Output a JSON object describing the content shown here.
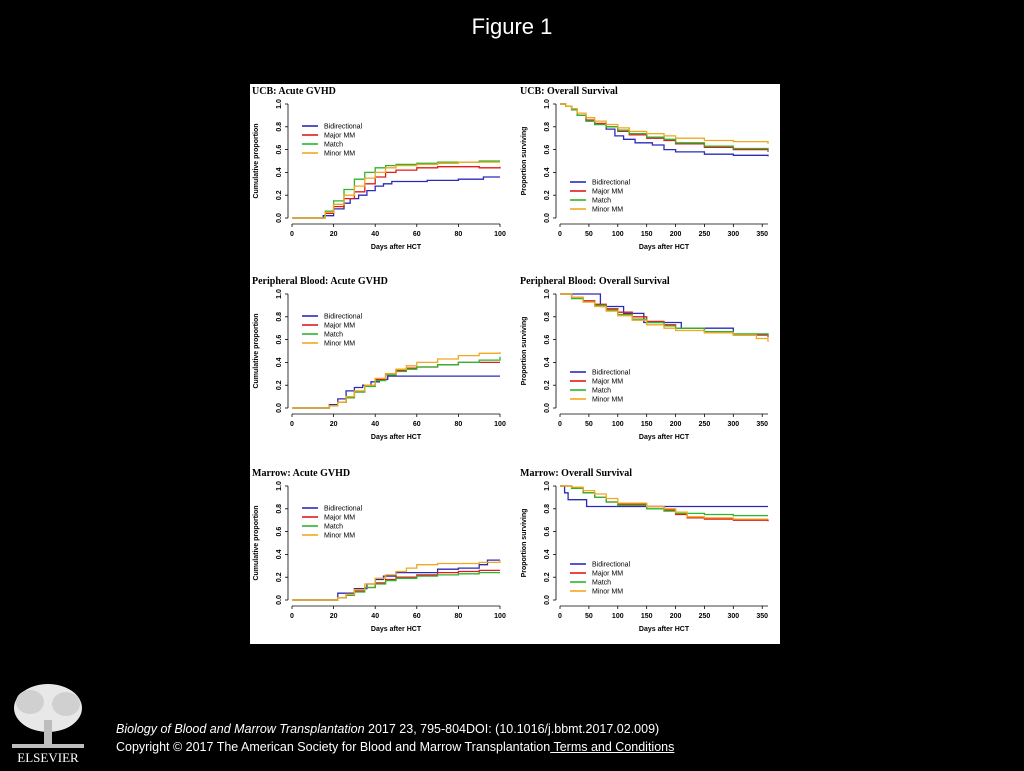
{
  "slide": {
    "title": "Figure 1"
  },
  "footer": {
    "journal": "Biology of Blood and Marrow Transplantation",
    "citation": " 2017 23, 795-804DOI: (10.1016/j.bbmt.2017.02.009)",
    "copyright": "Copyright © 2017 The American Society for Blood and Marrow Transplantation",
    "terms_link": " Terms and Conditions"
  },
  "logo": {
    "text": "ELSEVIER"
  },
  "colors": {
    "Bidirectional": "#2b2bb8",
    "Major MM": "#e11b1b",
    "Match": "#2db52d",
    "Minor MM": "#f0a81e"
  },
  "chart_data": [
    {
      "type": "line",
      "title": "UCB: Acute GVHD",
      "xlabel": "Days after HCT",
      "ylabel": "Cumulative proportion",
      "xlim": [
        0,
        100
      ],
      "ylim": [
        0,
        1.0
      ],
      "xticks": [
        "0",
        "20",
        "40",
        "60",
        "80",
        "100"
      ],
      "yticks": [
        "0.0",
        "0.2",
        "0.4",
        "0.6",
        "0.8",
        "1.0"
      ],
      "legend_position": "top-left",
      "series": [
        {
          "name": "Bidirectional",
          "x": [
            0,
            12,
            15,
            20,
            25,
            28,
            32,
            36,
            40,
            44,
            48,
            55,
            65,
            80,
            92,
            100
          ],
          "y": [
            0,
            0,
            0.02,
            0.08,
            0.13,
            0.17,
            0.2,
            0.24,
            0.28,
            0.3,
            0.32,
            0.32,
            0.33,
            0.34,
            0.36,
            0.36
          ]
        },
        {
          "name": "Major MM",
          "x": [
            0,
            12,
            16,
            20,
            25,
            30,
            35,
            40,
            45,
            50,
            60,
            70,
            80,
            90,
            100
          ],
          "y": [
            0,
            0,
            0.04,
            0.1,
            0.17,
            0.23,
            0.3,
            0.36,
            0.4,
            0.42,
            0.44,
            0.45,
            0.45,
            0.44,
            0.45
          ]
        },
        {
          "name": "Match",
          "x": [
            0,
            12,
            16,
            20,
            25,
            30,
            35,
            40,
            45,
            50,
            60,
            70,
            80,
            90,
            100
          ],
          "y": [
            0,
            0,
            0.06,
            0.15,
            0.25,
            0.34,
            0.4,
            0.44,
            0.46,
            0.47,
            0.48,
            0.49,
            0.49,
            0.5,
            0.5
          ]
        },
        {
          "name": "Minor MM",
          "x": [
            0,
            12,
            16,
            20,
            25,
            30,
            35,
            40,
            45,
            50,
            60,
            70,
            80,
            90,
            100
          ],
          "y": [
            0,
            0,
            0.05,
            0.12,
            0.2,
            0.28,
            0.35,
            0.4,
            0.44,
            0.46,
            0.47,
            0.48,
            0.49,
            0.49,
            0.49
          ]
        }
      ]
    },
    {
      "type": "line",
      "title": "UCB: Overall Survival",
      "xlabel": "Days after HCT",
      "ylabel": "Proportion surviving",
      "xlim": [
        0,
        360
      ],
      "ylim": [
        0,
        1.0
      ],
      "xticks": [
        "0",
        "50",
        "100",
        "150",
        "200",
        "250",
        "300",
        "350"
      ],
      "yticks": [
        "0.0",
        "0.2",
        "0.4",
        "0.6",
        "0.8",
        "1.0"
      ],
      "legend_position": "bottom-left",
      "series": [
        {
          "name": "Bidirectional",
          "x": [
            0,
            10,
            20,
            30,
            45,
            60,
            80,
            95,
            110,
            130,
            160,
            180,
            200,
            250,
            300,
            360
          ],
          "y": [
            1.0,
            0.98,
            0.95,
            0.9,
            0.85,
            0.82,
            0.78,
            0.72,
            0.69,
            0.66,
            0.64,
            0.6,
            0.58,
            0.56,
            0.55,
            0.54
          ]
        },
        {
          "name": "Major MM",
          "x": [
            0,
            10,
            20,
            30,
            45,
            60,
            80,
            100,
            120,
            150,
            180,
            200,
            250,
            300,
            360
          ],
          "y": [
            1.0,
            0.98,
            0.95,
            0.9,
            0.86,
            0.83,
            0.8,
            0.76,
            0.73,
            0.7,
            0.68,
            0.65,
            0.62,
            0.6,
            0.58
          ]
        },
        {
          "name": "Match",
          "x": [
            0,
            10,
            20,
            30,
            45,
            60,
            80,
            100,
            120,
            150,
            180,
            200,
            250,
            300,
            360
          ],
          "y": [
            1.0,
            0.98,
            0.95,
            0.9,
            0.85,
            0.82,
            0.8,
            0.77,
            0.74,
            0.71,
            0.69,
            0.66,
            0.63,
            0.61,
            0.59
          ]
        },
        {
          "name": "Minor MM",
          "x": [
            0,
            10,
            20,
            30,
            45,
            60,
            80,
            100,
            120,
            150,
            180,
            200,
            250,
            300,
            360
          ],
          "y": [
            1.0,
            0.98,
            0.96,
            0.92,
            0.88,
            0.85,
            0.82,
            0.79,
            0.76,
            0.74,
            0.72,
            0.7,
            0.68,
            0.67,
            0.65
          ]
        }
      ]
    },
    {
      "type": "line",
      "title": "Peripheral Blood: Acute GVHD",
      "xlabel": "Days after HCT",
      "ylabel": "Cumulative proportion",
      "xlim": [
        0,
        100
      ],
      "ylim": [
        0,
        1.0
      ],
      "xticks": [
        "0",
        "20",
        "40",
        "60",
        "80",
        "100"
      ],
      "yticks": [
        "0.0",
        "0.2",
        "0.4",
        "0.6",
        "0.8",
        "1.0"
      ],
      "legend_position": "top-left",
      "series": [
        {
          "name": "Bidirectional",
          "x": [
            0,
            14,
            18,
            22,
            26,
            30,
            34,
            38,
            42,
            46,
            50,
            100
          ],
          "y": [
            0,
            0,
            0.03,
            0.08,
            0.15,
            0.18,
            0.2,
            0.23,
            0.25,
            0.28,
            0.28,
            0.28
          ]
        },
        {
          "name": "Major MM",
          "x": [
            0,
            14,
            18,
            22,
            26,
            30,
            35,
            40,
            45,
            50,
            55,
            60,
            70,
            80,
            100
          ],
          "y": [
            0,
            0,
            0.02,
            0.05,
            0.09,
            0.14,
            0.19,
            0.25,
            0.3,
            0.33,
            0.35,
            0.36,
            0.38,
            0.4,
            0.4
          ]
        },
        {
          "name": "Match",
          "x": [
            0,
            14,
            18,
            22,
            26,
            30,
            35,
            40,
            45,
            50,
            55,
            60,
            70,
            80,
            90,
            100
          ],
          "y": [
            0,
            0,
            0.02,
            0.05,
            0.09,
            0.14,
            0.19,
            0.24,
            0.29,
            0.32,
            0.34,
            0.36,
            0.38,
            0.4,
            0.42,
            0.45
          ]
        },
        {
          "name": "Minor MM",
          "x": [
            0,
            14,
            18,
            22,
            26,
            30,
            35,
            40,
            45,
            50,
            55,
            60,
            70,
            80,
            90,
            100
          ],
          "y": [
            0,
            0,
            0.02,
            0.05,
            0.1,
            0.15,
            0.2,
            0.26,
            0.3,
            0.34,
            0.37,
            0.4,
            0.43,
            0.46,
            0.48,
            0.49
          ]
        }
      ]
    },
    {
      "type": "line",
      "title": "Peripheral Blood: Overall Survival",
      "xlabel": "Days after HCT",
      "ylabel": "Proportion surviving",
      "xlim": [
        0,
        360
      ],
      "ylim": [
        0,
        1.0
      ],
      "xticks": [
        "0",
        "50",
        "100",
        "150",
        "200",
        "250",
        "300",
        "350"
      ],
      "yticks": [
        "0.0",
        "0.2",
        "0.4",
        "0.6",
        "0.8",
        "1.0"
      ],
      "legend_position": "bottom-left",
      "series": [
        {
          "name": "Bidirectional",
          "x": [
            0,
            65,
            70,
            100,
            110,
            140,
            145,
            200,
            210,
            300,
            360
          ],
          "y": [
            1.0,
            1.0,
            0.89,
            0.89,
            0.83,
            0.83,
            0.75,
            0.75,
            0.7,
            0.64,
            0.64
          ]
        },
        {
          "name": "Major MM",
          "x": [
            0,
            20,
            40,
            60,
            80,
            100,
            125,
            150,
            180,
            200,
            250,
            300,
            360
          ],
          "y": [
            1.0,
            0.97,
            0.94,
            0.91,
            0.87,
            0.84,
            0.8,
            0.76,
            0.73,
            0.7,
            0.67,
            0.64,
            0.62
          ]
        },
        {
          "name": "Match",
          "x": [
            0,
            20,
            40,
            60,
            80,
            100,
            125,
            150,
            180,
            200,
            250,
            300,
            360
          ],
          "y": [
            1.0,
            0.96,
            0.93,
            0.9,
            0.86,
            0.82,
            0.78,
            0.75,
            0.72,
            0.7,
            0.67,
            0.65,
            0.63
          ]
        },
        {
          "name": "Minor MM",
          "x": [
            0,
            20,
            40,
            60,
            80,
            100,
            125,
            150,
            180,
            200,
            250,
            300,
            340,
            360
          ],
          "y": [
            1.0,
            0.97,
            0.93,
            0.89,
            0.85,
            0.81,
            0.77,
            0.73,
            0.7,
            0.68,
            0.66,
            0.64,
            0.61,
            0.58
          ]
        }
      ]
    },
    {
      "type": "line",
      "title": "Marrow: Acute GVHD",
      "xlabel": "Days after HCT",
      "ylabel": "Cumulative proportion",
      "xlim": [
        0,
        100
      ],
      "ylim": [
        0,
        1.0
      ],
      "xticks": [
        "0",
        "20",
        "40",
        "60",
        "80",
        "100"
      ],
      "yticks": [
        "0.0",
        "0.2",
        "0.4",
        "0.6",
        "0.8",
        "1.0"
      ],
      "legend_position": "top-left",
      "series": [
        {
          "name": "Bidirectional",
          "x": [
            0,
            16,
            22,
            26,
            30,
            36,
            40,
            44,
            50,
            60,
            70,
            80,
            90,
            94,
            100
          ],
          "y": [
            0,
            0,
            0.06,
            0.06,
            0.1,
            0.14,
            0.18,
            0.21,
            0.24,
            0.24,
            0.27,
            0.28,
            0.31,
            0.35,
            0.35
          ]
        },
        {
          "name": "Major MM",
          "x": [
            0,
            16,
            22,
            26,
            30,
            35,
            40,
            45,
            50,
            60,
            70,
            80,
            90,
            100
          ],
          "y": [
            0,
            0,
            0.02,
            0.05,
            0.08,
            0.11,
            0.15,
            0.18,
            0.2,
            0.22,
            0.24,
            0.25,
            0.26,
            0.26
          ]
        },
        {
          "name": "Match",
          "x": [
            0,
            16,
            22,
            26,
            30,
            35,
            40,
            45,
            50,
            60,
            70,
            80,
            90,
            100
          ],
          "y": [
            0,
            0,
            0.02,
            0.04,
            0.07,
            0.11,
            0.14,
            0.17,
            0.19,
            0.21,
            0.22,
            0.23,
            0.24,
            0.24
          ]
        },
        {
          "name": "Minor MM",
          "x": [
            0,
            16,
            22,
            26,
            30,
            35,
            40,
            45,
            50,
            55,
            60,
            70,
            80,
            90,
            100
          ],
          "y": [
            0,
            0,
            0.02,
            0.05,
            0.09,
            0.14,
            0.19,
            0.22,
            0.25,
            0.28,
            0.31,
            0.32,
            0.32,
            0.33,
            0.35
          ]
        }
      ]
    },
    {
      "type": "line",
      "title": "Marrow: Overall Survival",
      "xlabel": "Days after HCT",
      "ylabel": "Proportion surviving",
      "xlim": [
        0,
        360
      ],
      "ylim": [
        0,
        1.0
      ],
      "xticks": [
        "0",
        "50",
        "100",
        "150",
        "200",
        "250",
        "300",
        "350"
      ],
      "yticks": [
        "0.0",
        "0.2",
        "0.4",
        "0.6",
        "0.8",
        "1.0"
      ],
      "legend_position": "bottom-left",
      "series": [
        {
          "name": "Bidirectional",
          "x": [
            0,
            8,
            14,
            40,
            46,
            360
          ],
          "y": [
            1.0,
            0.94,
            0.88,
            0.88,
            0.82,
            0.82
          ]
        },
        {
          "name": "Major MM",
          "x": [
            0,
            20,
            40,
            60,
            80,
            100,
            150,
            180,
            200,
            220,
            250,
            300,
            360
          ],
          "y": [
            1.0,
            0.98,
            0.94,
            0.9,
            0.86,
            0.84,
            0.82,
            0.79,
            0.75,
            0.72,
            0.71,
            0.7,
            0.69
          ]
        },
        {
          "name": "Match",
          "x": [
            0,
            20,
            40,
            60,
            80,
            100,
            150,
            180,
            200,
            250,
            300,
            360
          ],
          "y": [
            1.0,
            0.98,
            0.94,
            0.9,
            0.86,
            0.83,
            0.8,
            0.78,
            0.76,
            0.75,
            0.74,
            0.74
          ]
        },
        {
          "name": "Minor MM",
          "x": [
            0,
            20,
            40,
            60,
            80,
            100,
            150,
            180,
            200,
            220,
            250,
            300,
            360
          ],
          "y": [
            1.0,
            0.99,
            0.96,
            0.93,
            0.89,
            0.85,
            0.82,
            0.8,
            0.77,
            0.73,
            0.72,
            0.71,
            0.71
          ]
        }
      ]
    }
  ]
}
